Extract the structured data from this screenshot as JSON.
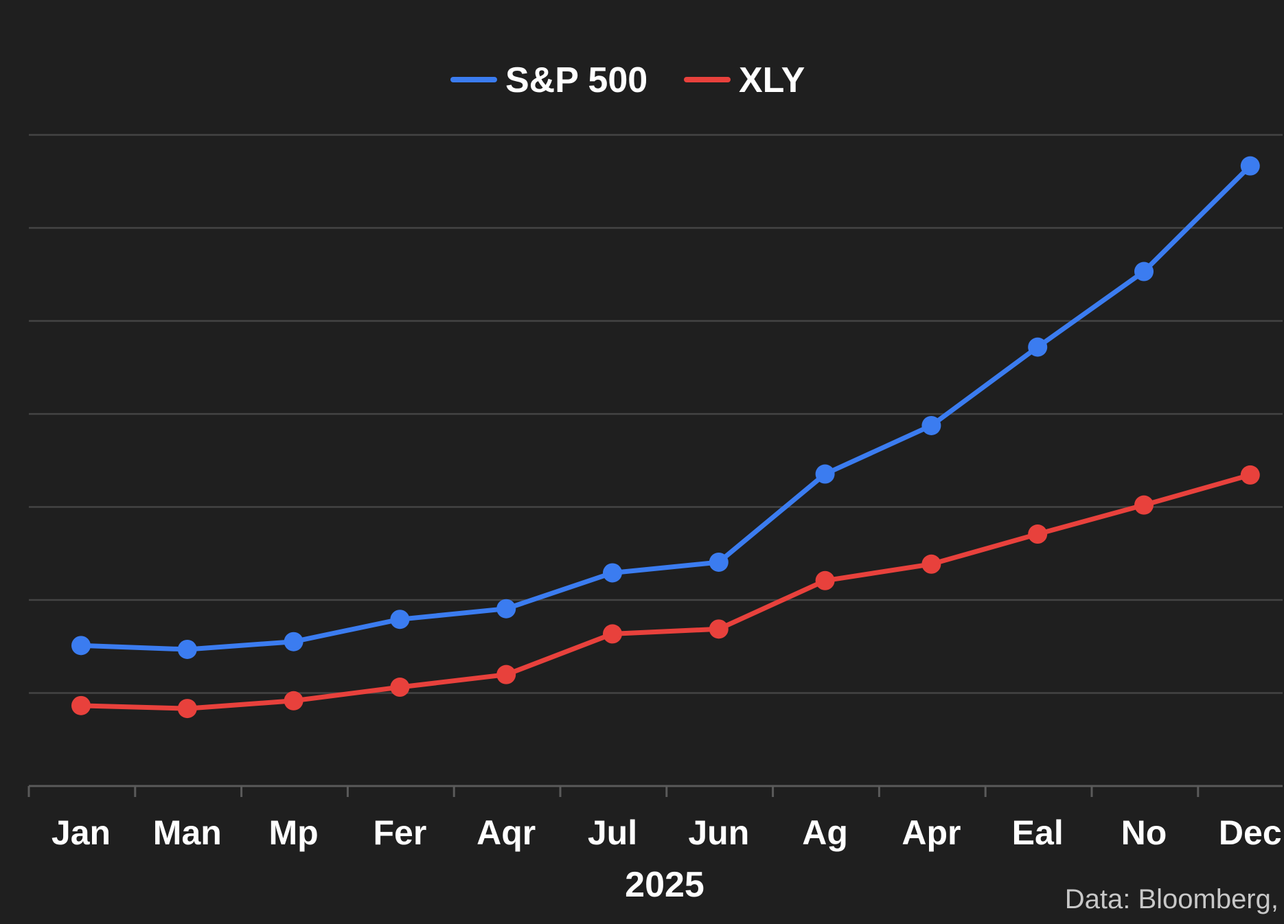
{
  "chart_data": {
    "type": "line",
    "categories": [
      "Jan",
      "Man",
      "Mp",
      "Fer",
      "Aqr",
      "Jul",
      "Jun",
      "Ag",
      "Apr",
      "Eal",
      "No",
      "Dec"
    ],
    "xlabel": "2025",
    "ylabel": "",
    "ylim": [
      0,
      7
    ],
    "grid": true,
    "legend_position": "top-center",
    "source_note": "Data: Bloomberg,",
    "series": [
      {
        "name": "S&P 500",
        "color": "#3b7cf0",
        "values": [
          1.45,
          1.41,
          1.49,
          1.72,
          1.83,
          2.2,
          2.31,
          3.22,
          3.72,
          4.53,
          5.31,
          6.4
        ]
      },
      {
        "name": "XLY",
        "color": "#e8413c",
        "values": [
          0.83,
          0.8,
          0.88,
          1.02,
          1.15,
          1.57,
          1.62,
          2.12,
          2.29,
          2.6,
          2.9,
          3.21
        ]
      }
    ]
  }
}
